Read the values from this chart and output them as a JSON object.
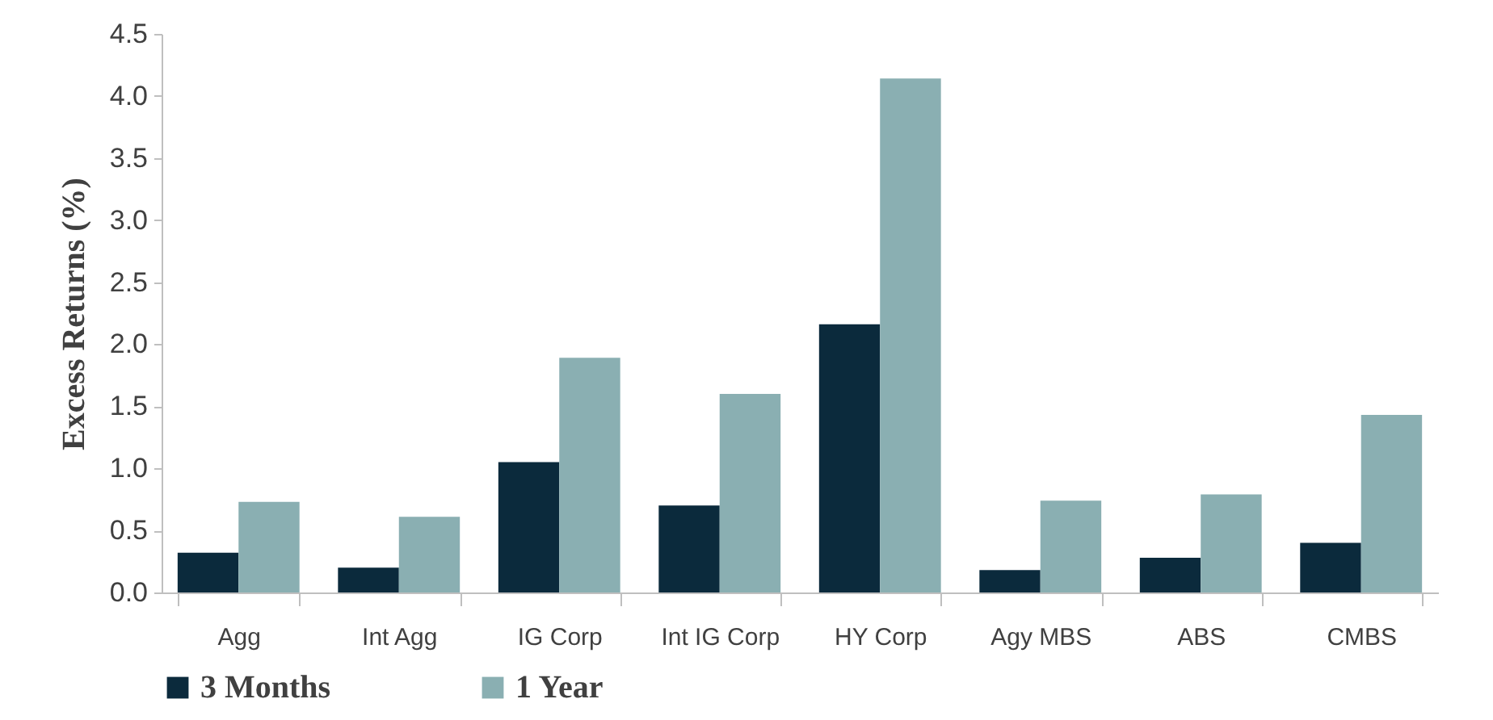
{
  "chart_data": {
    "type": "bar",
    "ylabel": "Excess Returns (%)",
    "categories": [
      "Agg",
      "Int Agg",
      "IG Corp",
      "Int IG Corp",
      "HY Corp",
      "Agy MBS",
      "ABS",
      "CMBS"
    ],
    "series": [
      {
        "name": "3 Months",
        "color": "#0b2a3c",
        "values": [
          0.32,
          0.2,
          1.05,
          0.7,
          2.16,
          0.18,
          0.28,
          0.4
        ]
      },
      {
        "name": "1 Year",
        "color": "#8aafb2",
        "values": [
          0.73,
          0.61,
          1.89,
          1.6,
          4.14,
          0.74,
          0.79,
          1.43
        ]
      }
    ],
    "ylim": [
      0,
      4.5
    ],
    "yticks": [
      {
        "value": 0,
        "label": "0.0"
      },
      0.5,
      {
        "value": 1,
        "label": "1.0"
      },
      1.5,
      {
        "value": 2,
        "label": "2.0"
      },
      2.5,
      {
        "value": 3,
        "label": "3.0"
      },
      3.5,
      {
        "value": 4,
        "label": "4.0"
      },
      4.5
    ],
    "grid": false,
    "legend": "bottom"
  }
}
